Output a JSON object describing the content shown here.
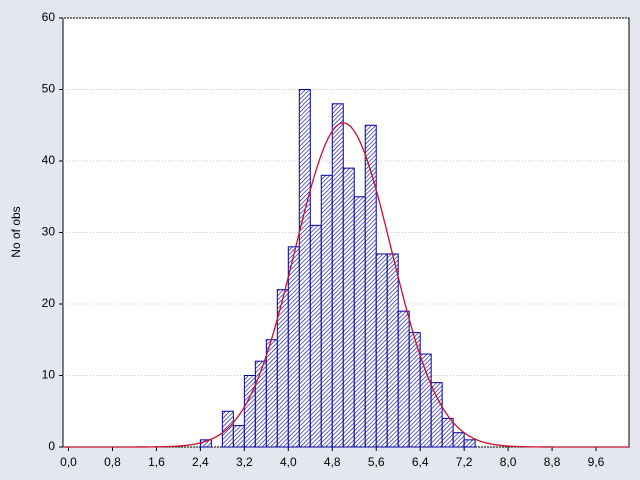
{
  "chart_data": {
    "type": "histogram",
    "y_label": "No of obs",
    "bins": [
      2.4,
      2.6,
      2.8,
      3.0,
      3.2,
      3.4,
      3.6,
      3.8,
      4.0,
      4.2,
      4.4,
      4.6,
      4.8,
      5.0,
      5.2,
      5.4,
      5.6,
      5.8,
      6.0,
      6.2,
      6.4,
      6.6,
      6.8,
      7.0,
      7.2,
      7.4
    ],
    "values": [
      1,
      0,
      5,
      3,
      10,
      12,
      15,
      22,
      28,
      50,
      31,
      38,
      48,
      39,
      35,
      45,
      27,
      27,
      19,
      16,
      13,
      9,
      4,
      2,
      1
    ],
    "color": "#0000a0",
    "normal_fit": {
      "mean": 5.0,
      "sd": 0.88,
      "color": "#c8102e"
    },
    "xlim": [
      -0.1,
      10.2
    ],
    "ylim": [
      0,
      60
    ],
    "xticks": [
      {
        "value": 0.0,
        "label": "0,0"
      },
      {
        "value": 0.8,
        "label": "0,8"
      },
      {
        "value": 1.6,
        "label": "1,6"
      },
      {
        "value": 2.4,
        "label": "2,4"
      },
      {
        "value": 3.2,
        "label": "3,2"
      },
      {
        "value": 4.0,
        "label": "4,0"
      },
      {
        "value": 4.8,
        "label": "4,8"
      },
      {
        "value": 5.6,
        "label": "5,6"
      },
      {
        "value": 6.4,
        "label": "6,4"
      },
      {
        "value": 7.2,
        "label": "7,2"
      },
      {
        "value": 8.0,
        "label": "8,0"
      },
      {
        "value": 8.8,
        "label": "8,8"
      },
      {
        "value": 9.6,
        "label": "9,6"
      }
    ],
    "yticks": [
      0,
      10,
      20,
      30,
      40,
      50,
      60
    ],
    "grid": true
  }
}
